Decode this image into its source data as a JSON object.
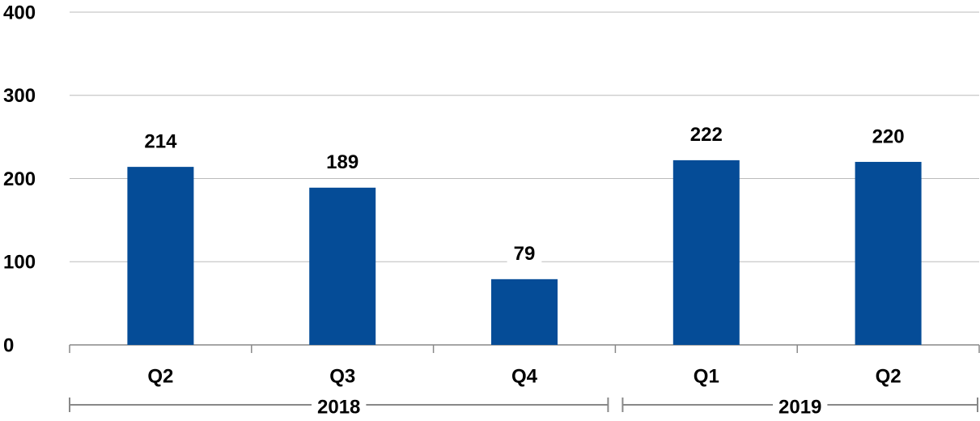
{
  "chart_data": {
    "type": "bar",
    "color": "#054c97",
    "ylim": [
      0,
      400
    ],
    "yticks": [
      0,
      100,
      200,
      300,
      400
    ],
    "grid": true,
    "groups": [
      {
        "name": "2018",
        "categories": [
          "Q2",
          "Q3",
          "Q4"
        ],
        "values": [
          214,
          189,
          79
        ]
      },
      {
        "name": "2019",
        "categories": [
          "Q1",
          "Q2"
        ],
        "values": [
          222,
          220
        ]
      }
    ]
  }
}
